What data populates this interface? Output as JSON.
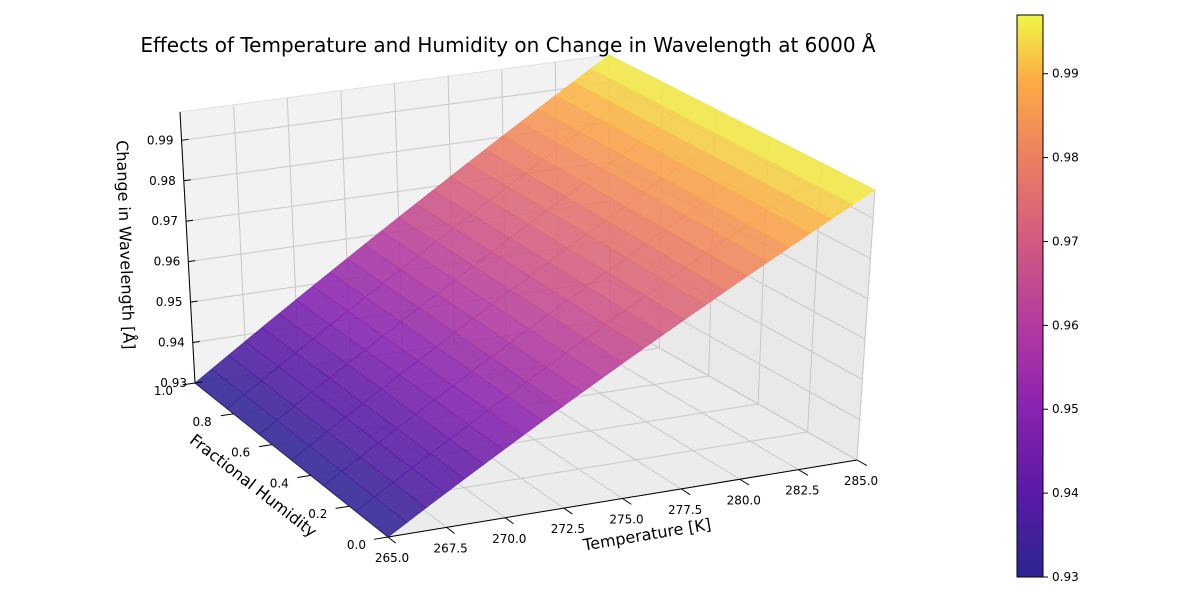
{
  "chart_data": {
    "type": "surface",
    "title": "Effects of Temperature and Humidity on Change in Wavelength at 6000 Å",
    "xlabel": "Temperature [K]",
    "ylabel": "Fractional Humidity",
    "zlabel": "Change in Wavelength [Å]",
    "x_ticks": [
      "265.0",
      "267.5",
      "270.0",
      "272.5",
      "275.0",
      "277.5",
      "280.0",
      "282.5",
      "285.0"
    ],
    "y_ticks": [
      "0.0",
      "0.2",
      "0.4",
      "0.6",
      "0.8",
      "1.0"
    ],
    "z_ticks": [
      "0.93",
      "0.94",
      "0.95",
      "0.96",
      "0.97",
      "0.98",
      "0.99"
    ],
    "xlim": [
      265,
      285
    ],
    "ylim": [
      0,
      1
    ],
    "zlim": [
      0.93,
      0.997
    ],
    "surface_corners": [
      {
        "temperature": 265,
        "humidity": 0,
        "change": 0.93
      },
      {
        "temperature": 265,
        "humidity": 1,
        "change": 0.93
      },
      {
        "temperature": 285,
        "humidity": 0,
        "change": 0.997
      },
      {
        "temperature": 285,
        "humidity": 1,
        "change": 0.997
      }
    ],
    "colormap": "plasma",
    "colorbar": {
      "ticks": [
        "0.93",
        "0.94",
        "0.95",
        "0.96",
        "0.97",
        "0.98",
        "0.99"
      ],
      "range": [
        0.93,
        0.997
      ]
    },
    "grid": true
  }
}
